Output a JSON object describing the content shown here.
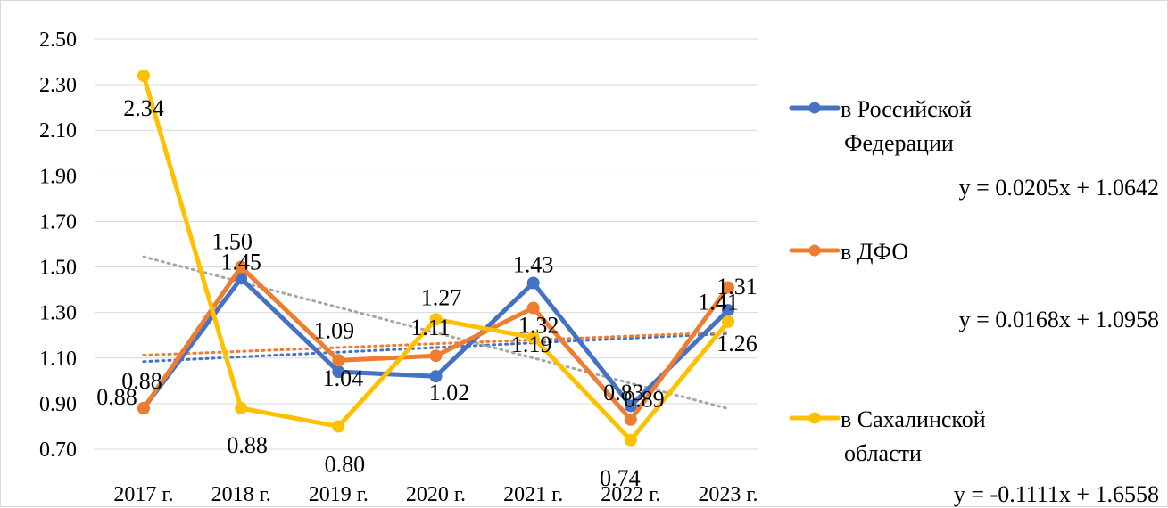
{
  "chart_data": {
    "type": "line",
    "title": "",
    "xlabel": "",
    "ylabel": "",
    "categories": [
      "2017 г.",
      "2018 г.",
      "2019 г.",
      "2020 г.",
      "2021 г.",
      "2022 г.",
      "2023 г."
    ],
    "ylim": [
      0.7,
      2.5
    ],
    "yticks": [
      "0.70",
      "0.90",
      "1.10",
      "1.30",
      "1.50",
      "1.70",
      "1.90",
      "2.10",
      "2.30",
      "2.50"
    ],
    "grid": true,
    "legend_position": "right",
    "series": [
      {
        "name": "в Российской Федерации",
        "color": "#4472c4",
        "values": [
          0.88,
          1.45,
          1.04,
          1.02,
          1.43,
          0.89,
          1.31
        ],
        "labels": [
          "0.88",
          "1.45",
          "1.04",
          "1.02",
          "1.43",
          "0.89",
          "1.31"
        ],
        "trendline": {
          "equation": "y = 0.0205x + 1.0642",
          "slope": 0.0205,
          "intercept": 1.0642
        }
      },
      {
        "name": "в ДФО",
        "color": "#ed7d31",
        "values": [
          0.88,
          1.5,
          1.09,
          1.11,
          1.32,
          0.83,
          1.41
        ],
        "labels": [
          "0.88",
          "1.50",
          "1.09",
          "1.11",
          "1.32",
          "0.83",
          "1.41"
        ],
        "trendline": {
          "equation": "y = 0.0168x + 1.0958",
          "slope": 0.0168,
          "intercept": 1.0958
        }
      },
      {
        "name": "в Сахалинской области",
        "color": "#ffc000",
        "values": [
          2.34,
          0.88,
          0.8,
          1.27,
          1.19,
          0.74,
          1.26
        ],
        "labels": [
          "2.34",
          "0.88",
          "0.80",
          "1.27",
          "1.19",
          "0.74",
          "1.26"
        ],
        "trendline": {
          "equation": "y = -0.1111x + 1.6558",
          "slope": -0.1111,
          "intercept": 1.6558
        }
      }
    ],
    "legend": {
      "entries": [
        {
          "lines": [
            "в Российской",
            "Федерации"
          ]
        },
        {
          "lines": [
            "в ДФО"
          ]
        },
        {
          "lines": [
            "в Сахалинской",
            "области"
          ]
        }
      ]
    }
  }
}
